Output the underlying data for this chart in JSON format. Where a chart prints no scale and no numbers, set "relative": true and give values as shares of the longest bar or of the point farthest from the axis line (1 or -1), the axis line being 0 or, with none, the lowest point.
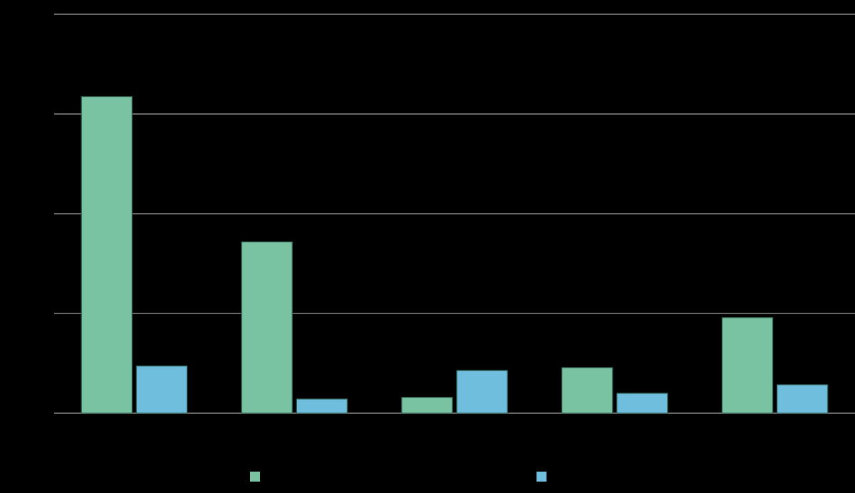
{
  "chart_data": {
    "type": "bar",
    "relative": true,
    "categories": [
      null,
      null,
      null,
      null,
      null
    ],
    "grid": true,
    "series": [
      {
        "color": "#79c2a2",
        "values": [
          1,
          0.541,
          0.05,
          0.144,
          0.302
        ]
      },
      {
        "color": "#6fbede",
        "values": [
          0.149,
          0.045,
          0.135,
          0.063,
          0.09
        ]
      }
    ]
  }
}
